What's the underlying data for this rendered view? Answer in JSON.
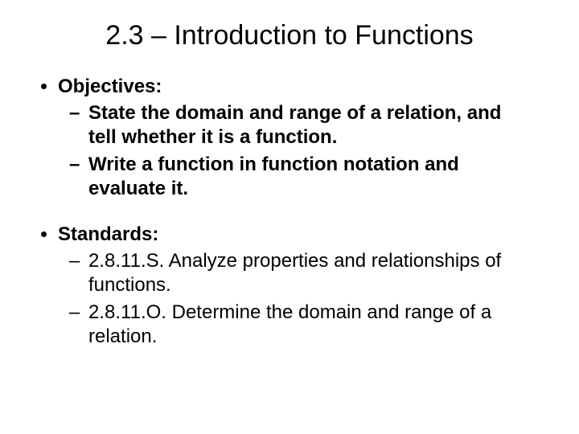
{
  "title": "2.3 – Introduction to Functions",
  "objectives": {
    "header": "Objectives:",
    "items": [
      "State the domain and range of a relation, and tell whether it is a function.",
      "Write a function in function notation and evaluate it."
    ]
  },
  "standards": {
    "header": "Standards:",
    "items": [
      "2.8.11.S. Analyze properties and relationships of functions.",
      "2.8.11.O. Determine the domain and range of a relation."
    ]
  },
  "styling": {
    "background_color": "#ffffff",
    "text_color": "#000000",
    "title_fontsize": 34,
    "title_fontweight": "normal",
    "body_fontsize": 24,
    "header_fontweight": "bold",
    "objectives_item_fontweight": "bold",
    "standards_item_fontweight": "normal",
    "font_family": "Arial"
  }
}
